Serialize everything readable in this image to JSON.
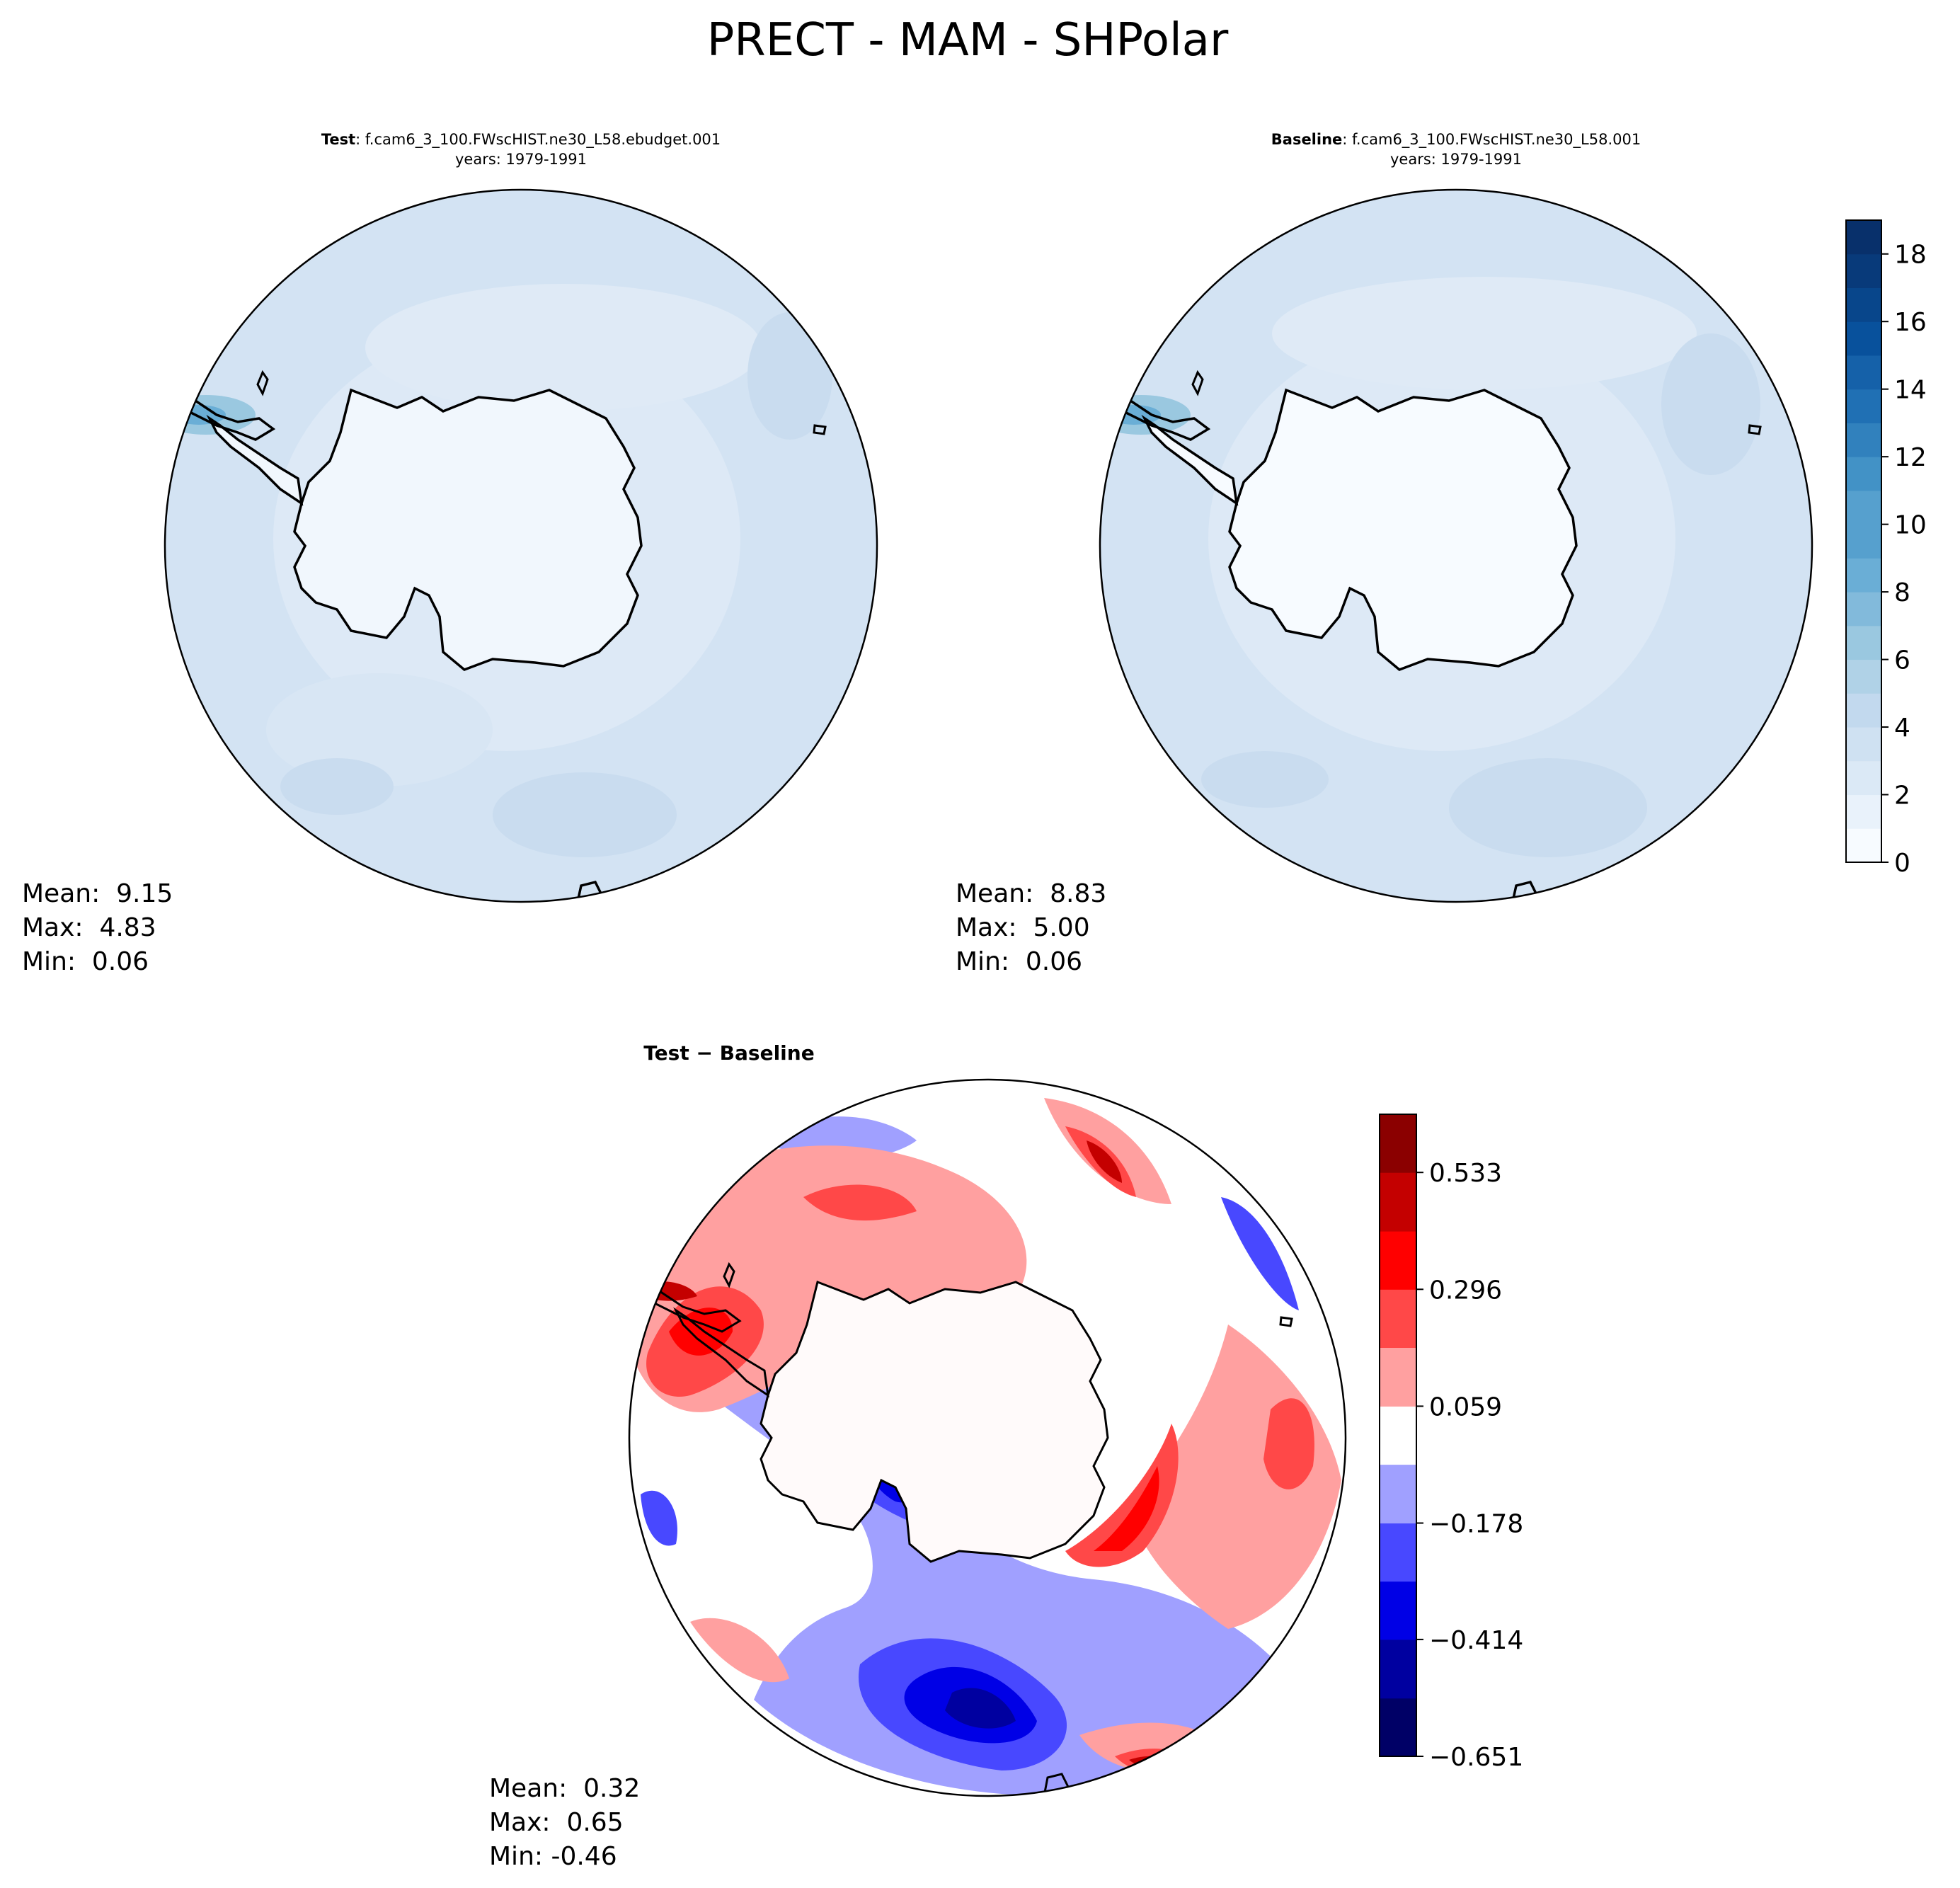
{
  "figure": {
    "title": "PRECT - MAM - SHPolar"
  },
  "panels": {
    "test": {
      "title_bold": "Test",
      "title_rest": ": f.cam6_3_100.FWscHIST.ne30_L58.ebudget.001",
      "years": "years: 1979-1991",
      "stats": {
        "mean": "Mean:  9.15",
        "max": "Max:  4.83",
        "min": "Min:  0.06"
      }
    },
    "baseline": {
      "title_bold": "Baseline",
      "title_rest": ": f.cam6_3_100.FWscHIST.ne30_L58.001",
      "years": "years: 1979-1991",
      "stats": {
        "mean": "Mean:  8.83",
        "max": "Max:  5.00",
        "min": "Min:  0.06"
      }
    },
    "diff": {
      "title": "Test − Baseline",
      "stats": {
        "mean": "Mean:  0.32",
        "max": "Max:  0.65",
        "min": "Min: -0.46"
      }
    }
  },
  "colors": {
    "blues": [
      "#f7fbff",
      "#e9f2fb",
      "#dbe9f6",
      "#cfe1f2",
      "#c2d9ee",
      "#b0d2e7",
      "#9ac8e0",
      "#82badb",
      "#6aaed6",
      "#56a0ce",
      "#4292c6",
      "#3181bd",
      "#2070b4",
      "#1561a9",
      "#08519c",
      "#08468b",
      "#083a7a",
      "#08306b"
    ],
    "diverging": [
      "#000066",
      "#0000a0",
      "#0000e6",
      "#4848ff",
      "#a0a0ff",
      "#ffffff",
      "#ffa0a0",
      "#ff4848",
      "#ff0000",
      "#c40000",
      "#8b0000"
    ],
    "coast": "#000000",
    "land_test": "#f1f7fd",
    "ocean_test": "#d3e3f3"
  },
  "chart_data": [
    {
      "type": "heatmap",
      "name": "Test field map",
      "projection": "south polar stereographic",
      "variable": "PRECT",
      "units_implied": "mm/day",
      "mean": 9.15,
      "max": 4.83,
      "min": 0.06,
      "colorbar": "shared sequential blues (see baseline)"
    },
    {
      "type": "heatmap",
      "name": "Baseline field map",
      "projection": "south polar stereographic",
      "variable": "PRECT",
      "mean": 8.83,
      "max": 5.0,
      "min": 0.06,
      "colorbar": {
        "range": [
          0,
          19
        ],
        "levels": [
          0,
          1,
          2,
          3,
          4,
          5,
          6,
          7,
          8,
          9,
          10,
          11,
          12,
          13,
          14,
          15,
          16,
          17,
          18,
          19
        ],
        "ticks": [
          0,
          2,
          4,
          6,
          8,
          10,
          12,
          14,
          16,
          18
        ],
        "tick_labels": [
          "0",
          "2",
          "4",
          "6",
          "8",
          "10",
          "12",
          "14",
          "16",
          "18"
        ]
      }
    },
    {
      "type": "heatmap",
      "name": "Test - Baseline difference map",
      "projection": "south polar stereographic",
      "mean": 0.32,
      "max": 0.65,
      "min": -0.46,
      "colorbar": {
        "range": [
          -0.651,
          0.651
        ],
        "levels": [
          -0.651,
          -0.533,
          -0.414,
          -0.296,
          -0.178,
          -0.059,
          0.059,
          0.178,
          0.296,
          0.414,
          0.533,
          0.651
        ],
        "ticks": [
          -0.651,
          -0.414,
          -0.178,
          0.059,
          0.296,
          0.533
        ],
        "tick_labels": [
          "−0.651",
          "−0.414",
          "−0.178",
          "0.059",
          "0.296",
          "0.533"
        ]
      }
    }
  ]
}
